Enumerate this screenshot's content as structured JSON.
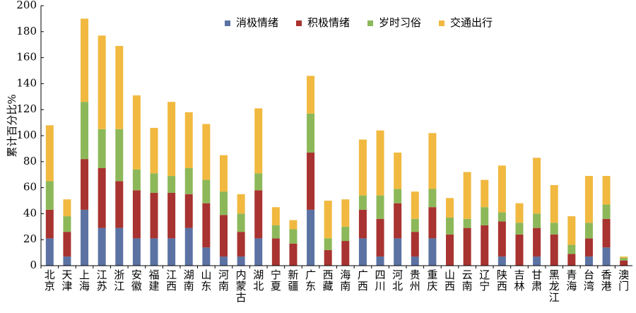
{
  "chart_data": {
    "type": "bar",
    "stacked": true,
    "ylabel": "累计百分比%",
    "xlabel": "",
    "ylim": [
      0,
      200
    ],
    "yticks": [
      0,
      20,
      40,
      60,
      80,
      100,
      120,
      140,
      160,
      180,
      200
    ],
    "grid": false,
    "legend_position": "top-right",
    "categories": [
      "北京",
      "天津",
      "上海",
      "江苏",
      "浙江",
      "安徽",
      "福建",
      "江西",
      "湖南",
      "山东",
      "河南",
      "内蒙古",
      "湖北",
      "宁夏",
      "新疆",
      "广东",
      "西藏",
      "海南",
      "广西",
      "四川",
      "河北",
      "贵州",
      "重庆",
      "山西",
      "云南",
      "辽宁",
      "陕西",
      "吉林",
      "甘肃",
      "黑龙江",
      "青海",
      "台湾",
      "香港",
      "澳门"
    ],
    "series": [
      {
        "name": "消极情绪",
        "color": "#5b72a3",
        "values": [
          21,
          7,
          43,
          29,
          29,
          21,
          21,
          21,
          29,
          14,
          7,
          7,
          21,
          0,
          0,
          43,
          0,
          0,
          21,
          7,
          21,
          7,
          21,
          0,
          0,
          0,
          7,
          0,
          7,
          0,
          0,
          7,
          14,
          0
        ]
      },
      {
        "name": "积极情绪",
        "color": "#a83330",
        "values": [
          22,
          19,
          39,
          46,
          36,
          37,
          35,
          35,
          26,
          34,
          32,
          19,
          37,
          21,
          17,
          44,
          12,
          19,
          22,
          29,
          27,
          19,
          24,
          24,
          29,
          31,
          27,
          24,
          22,
          24,
          9,
          14,
          22,
          4
        ]
      },
      {
        "name": "岁时习俗",
        "color": "#8db85a",
        "values": [
          22,
          12,
          44,
          30,
          40,
          16,
          15,
          13,
          20,
          18,
          18,
          14,
          13,
          10,
          11,
          30,
          9,
          11,
          11,
          18,
          11,
          10,
          14,
          13,
          7,
          14,
          7,
          9,
          11,
          9,
          7,
          12,
          11,
          2
        ]
      },
      {
        "name": "交通出行",
        "color": "#f1b940",
        "values": [
          43,
          13,
          64,
          72,
          64,
          57,
          35,
          57,
          43,
          43,
          28,
          15,
          50,
          14,
          7,
          29,
          29,
          21,
          43,
          50,
          28,
          21,
          43,
          15,
          36,
          21,
          36,
          15,
          43,
          29,
          22,
          36,
          22,
          1
        ]
      }
    ]
  }
}
